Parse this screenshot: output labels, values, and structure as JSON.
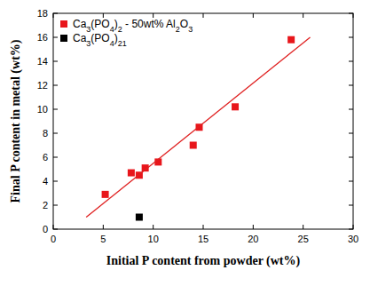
{
  "chart_data": {
    "type": "scatter",
    "x_label": "Initial P content from powder (wt%)",
    "y_label": "Final P content in metal (wt%)",
    "xlim": [
      0,
      30
    ],
    "xticks": [
      0,
      5,
      10,
      15,
      20,
      25,
      30
    ],
    "ylim": [
      0,
      18
    ],
    "yticks": [
      0,
      2,
      4,
      6,
      8,
      10,
      12,
      14,
      16,
      18
    ],
    "legend": "upper left",
    "series": [
      {
        "name": "Ca3(PO4)2 - 50wt% Al2O3",
        "color": "#e8161b",
        "marker": "square",
        "x": [
          5.2,
          7.8,
          8.6,
          9.2,
          10.5,
          14.0,
          14.6,
          18.2,
          23.8
        ],
        "values": [
          2.9,
          4.7,
          4.5,
          5.1,
          5.6,
          7.0,
          8.5,
          10.2,
          15.8
        ]
      },
      {
        "name": "Ca3(PO4)21",
        "color": "#000000",
        "marker": "square",
        "x": [
          8.6
        ],
        "values": [
          1.0
        ]
      },
      {
        "type": "line",
        "color": "#e02020",
        "line_style": "solid",
        "x": [
          3.3,
          25.7
        ],
        "values": [
          1.0,
          16.0
        ]
      }
    ]
  }
}
